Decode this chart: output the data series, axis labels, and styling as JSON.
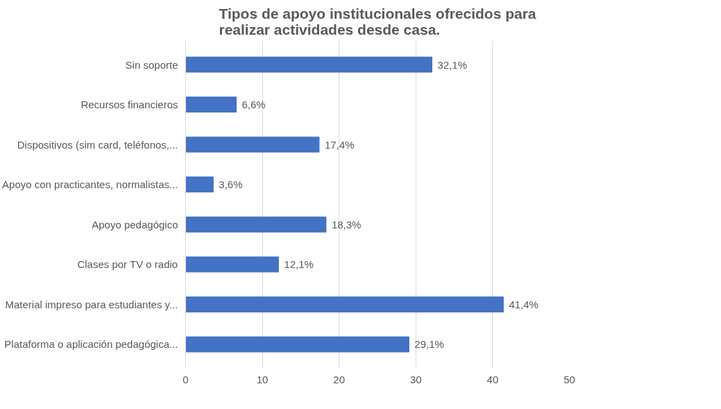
{
  "chart_data": {
    "type": "bar",
    "orientation": "horizontal",
    "title": "Tipos de apoyo institucionales ofrecidos para realizar actividades desde casa.",
    "categories": [
      "Sin soporte",
      "Recursos financieros",
      "Dispositivos (sim card, teléfonos,...",
      "Apoyo con practicantes, normalistas...",
      "Apoyo pedagógico",
      "Clases por TV o radio",
      "Material impreso para estudiantes y...",
      "Plataforma o aplicación pedagógica..."
    ],
    "values": [
      32.1,
      6.6,
      17.4,
      3.6,
      18.3,
      12.1,
      41.4,
      29.1
    ],
    "value_labels": [
      "32,1%",
      "6,6%",
      "17,4%",
      "3,6%",
      "18,3%",
      "12,1%",
      "41,4%",
      "29,1%"
    ],
    "color": "#4472c4",
    "xlim": [
      0,
      50
    ],
    "xticks": [
      0,
      10,
      20,
      30,
      40,
      50
    ],
    "grid": "x"
  }
}
